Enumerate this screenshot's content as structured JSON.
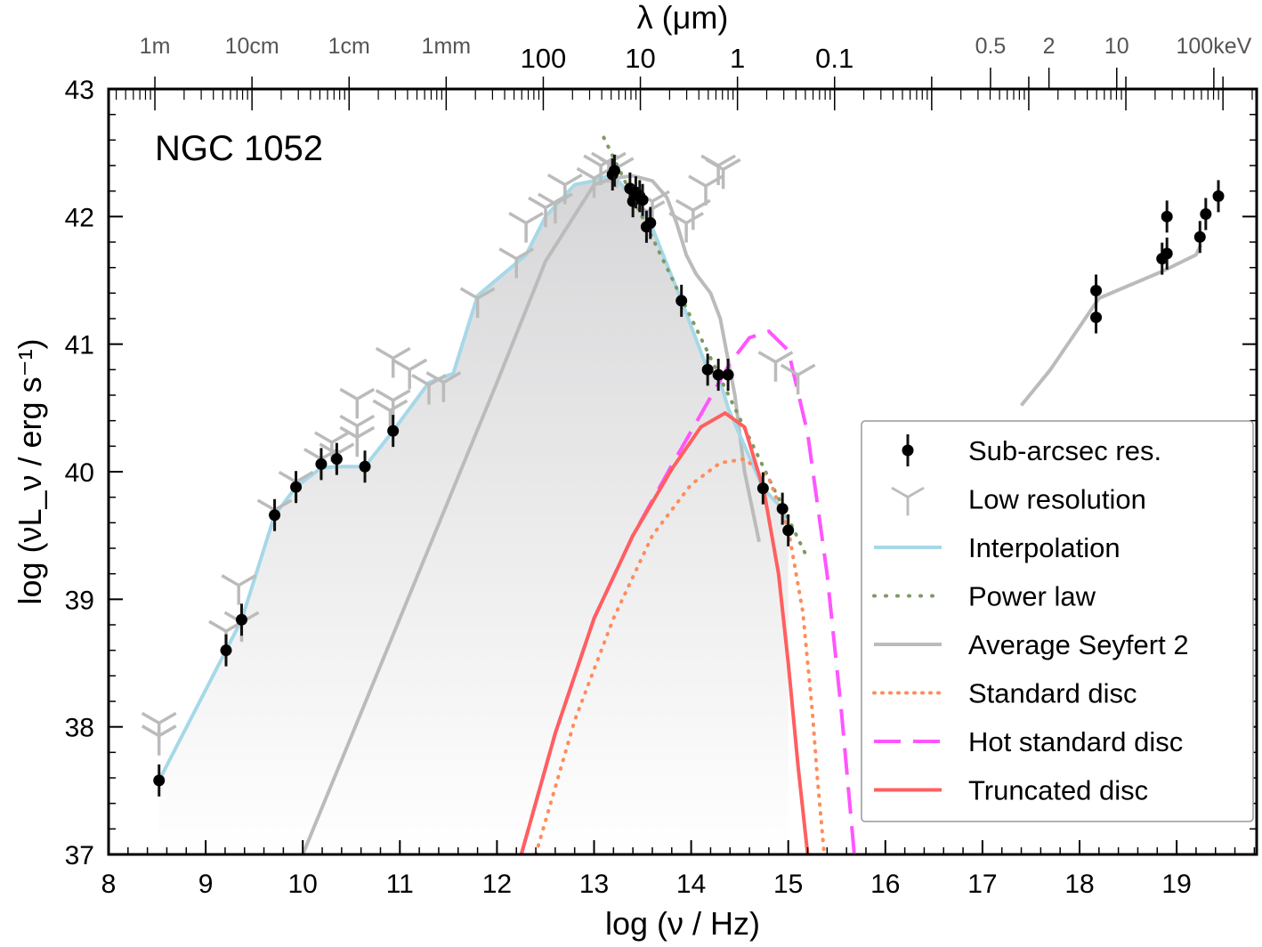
{
  "chart_data": {
    "type": "scatter",
    "title": "",
    "annotation": "NGC 1052",
    "xlabel": "log (ν / Hz)",
    "ylabel": "log (νL_ν / erg s⁻¹)",
    "top_xlabel": "λ (μm)",
    "xlim": [
      8,
      20
    ],
    "ylim": [
      37,
      43
    ],
    "grid": false,
    "legend_position": "lower-right",
    "x_ticks": [
      "8",
      "9",
      "10",
      "11",
      "12",
      "13",
      "14",
      "15",
      "16",
      "17",
      "18",
      "19"
    ],
    "y_ticks": [
      "37",
      "38",
      "39",
      "40",
      "41",
      "42",
      "43"
    ],
    "top_ticks_gray": [
      {
        "label": "1m",
        "logv": 8.477
      },
      {
        "label": "10cm",
        "logv": 9.477
      },
      {
        "label": "1cm",
        "logv": 10.477
      },
      {
        "label": "1mm",
        "logv": 11.477
      },
      {
        "label": "0.5",
        "logv": 17.083
      },
      {
        "label": "2",
        "logv": 17.685
      },
      {
        "label": "10",
        "logv": 18.383
      },
      {
        "label": "100keV",
        "logv": 19.383
      }
    ],
    "top_ticks_black": [
      {
        "label": "100",
        "logv": 12.477
      },
      {
        "label": "10",
        "logv": 13.477
      },
      {
        "label": "1",
        "logv": 14.477
      },
      {
        "label": "0.1",
        "logv": 15.477
      }
    ],
    "legend": [
      {
        "label": "Sub-arcsec res.",
        "style": "point-errorbar",
        "color": "#000000"
      },
      {
        "label": "Low resolution",
        "style": "tri-down",
        "color": "#bbbbbb"
      },
      {
        "label": "Interpolation",
        "style": "solid",
        "color": "#a6d8e8"
      },
      {
        "label": "Power law",
        "style": "dotted",
        "color": "#7f9a62"
      },
      {
        "label": "Average Seyfert 2",
        "style": "solid",
        "color": "#bbbbbb"
      },
      {
        "label": "Standard disc",
        "style": "dotted",
        "color": "#ff8c5a"
      },
      {
        "label": "Hot standard disc",
        "style": "dashed",
        "color": "#ff55ff"
      },
      {
        "label": "Truncated disc",
        "style": "solid",
        "color": "#ff5f5f"
      }
    ],
    "series": [
      {
        "name": "Sub-arcsec res.",
        "kind": "points",
        "x": [
          8.52,
          9.21,
          9.37,
          9.71,
          9.93,
          10.19,
          10.35,
          10.64,
          10.93,
          13.19,
          13.21,
          13.37,
          13.4,
          13.43,
          13.47,
          13.5,
          13.54,
          13.58,
          13.9,
          14.17,
          14.28,
          14.38,
          14.74,
          14.94,
          15.0,
          18.17,
          18.17,
          18.85,
          18.9,
          18.9,
          19.24,
          19.3,
          19.43
        ],
        "y": [
          37.58,
          38.6,
          38.84,
          39.66,
          39.88,
          40.06,
          40.1,
          40.04,
          40.32,
          42.33,
          42.36,
          42.22,
          42.12,
          42.19,
          42.16,
          42.13,
          41.92,
          41.95,
          41.34,
          40.8,
          40.76,
          40.76,
          39.87,
          39.71,
          39.54,
          41.42,
          41.21,
          41.67,
          41.71,
          42.0,
          41.84,
          42.02,
          42.16
        ]
      },
      {
        "name": "Low resolution",
        "kind": "upper-limits",
        "x": [
          8.52,
          8.52,
          9.21,
          9.34,
          9.37,
          9.71,
          9.93,
          10.19,
          10.3,
          10.35,
          10.56,
          10.56,
          10.56,
          10.9,
          10.93,
          10.93,
          11.1,
          11.3,
          11.45,
          11.8,
          12.2,
          12.3,
          12.5,
          12.6,
          12.7,
          13.0,
          13.07,
          13.15,
          13.23,
          13.55,
          13.6,
          13.95,
          14.02,
          14.15,
          14.28,
          14.33,
          14.87,
          15.1
        ],
        "y": [
          38.03,
          37.93,
          38.75,
          39.11,
          38.82,
          39.7,
          39.92,
          40.1,
          40.23,
          40.14,
          40.57,
          40.36,
          40.27,
          40.48,
          40.56,
          40.89,
          40.8,
          40.68,
          40.7,
          41.36,
          41.67,
          41.95,
          42.07,
          42.1,
          42.25,
          42.3,
          42.4,
          42.42,
          42.38,
          42.04,
          42.12,
          41.95,
          42.05,
          42.24,
          42.4,
          42.37,
          40.86,
          40.76
        ]
      },
      {
        "name": "Interpolation",
        "kind": "line",
        "x": [
          8.52,
          9.21,
          9.37,
          9.71,
          9.93,
          10.19,
          10.35,
          10.64,
          10.93,
          11.3,
          11.55,
          11.8,
          12.3,
          12.5,
          12.8,
          13.0,
          13.19,
          13.4,
          13.58,
          13.9,
          14.17,
          14.28,
          14.38,
          14.74,
          14.94,
          15.0
        ],
        "y": [
          37.58,
          38.6,
          38.84,
          39.66,
          39.88,
          40.03,
          40.04,
          40.04,
          40.32,
          40.7,
          40.77,
          41.38,
          41.7,
          42.0,
          42.25,
          42.28,
          42.33,
          42.15,
          41.95,
          41.34,
          40.8,
          40.76,
          40.5,
          39.87,
          39.71,
          39.54
        ]
      },
      {
        "name": "Power law",
        "kind": "line",
        "x": [
          13.1,
          15.2
        ],
        "y": [
          42.62,
          39.32
        ]
      },
      {
        "name": "Average Seyfert 2",
        "kind": "line",
        "segments": [
          {
            "x": [
              10.0,
              11.0,
              12.0,
              12.5,
              13.0,
              13.2,
              13.4,
              13.6,
              13.75,
              13.85,
              13.95,
              14.05,
              14.2,
              14.3,
              14.45,
              14.55,
              14.7
            ],
            "y": [
              37.0,
              38.85,
              40.7,
              41.65,
              42.25,
              42.3,
              42.32,
              42.28,
              42.15,
              41.95,
              41.7,
              41.55,
              41.4,
              41.2,
              40.6,
              40.0,
              39.45
            ]
          },
          {
            "x": [
              17.4,
              17.7,
              18.2,
              18.85,
              19.2,
              19.25
            ],
            "y": [
              40.52,
              40.8,
              41.36,
              41.57,
              41.7,
              41.78
            ]
          }
        ]
      },
      {
        "name": "Standard disc",
        "kind": "line",
        "x": [
          12.4,
          12.8,
          13.2,
          13.6,
          14.0,
          14.3,
          14.55,
          14.8,
          15.0,
          15.15,
          15.25,
          15.3,
          15.37
        ],
        "y": [
          37.0,
          38.05,
          38.85,
          39.5,
          39.9,
          40.07,
          40.1,
          39.95,
          39.55,
          38.9,
          38.1,
          37.6,
          37.0
        ]
      },
      {
        "name": "Hot standard disc",
        "kind": "line",
        "x": [
          12.25,
          12.6,
          13.0,
          13.4,
          13.8,
          14.1,
          14.4,
          14.6,
          14.8,
          15.0,
          15.2,
          15.4,
          15.55,
          15.68
        ],
        "y": [
          37.0,
          37.95,
          38.85,
          39.5,
          40.05,
          40.45,
          40.85,
          41.05,
          41.1,
          40.95,
          40.3,
          39.2,
          38.1,
          37.0
        ]
      },
      {
        "name": "Truncated disc",
        "kind": "line",
        "x": [
          12.25,
          12.6,
          13.0,
          13.4,
          13.8,
          14.1,
          14.35,
          14.55,
          14.75,
          14.9,
          15.0,
          15.1,
          15.2
        ],
        "y": [
          37.0,
          37.95,
          38.85,
          39.5,
          40.02,
          40.35,
          40.46,
          40.35,
          39.85,
          39.2,
          38.5,
          37.7,
          37.0
        ]
      }
    ]
  }
}
